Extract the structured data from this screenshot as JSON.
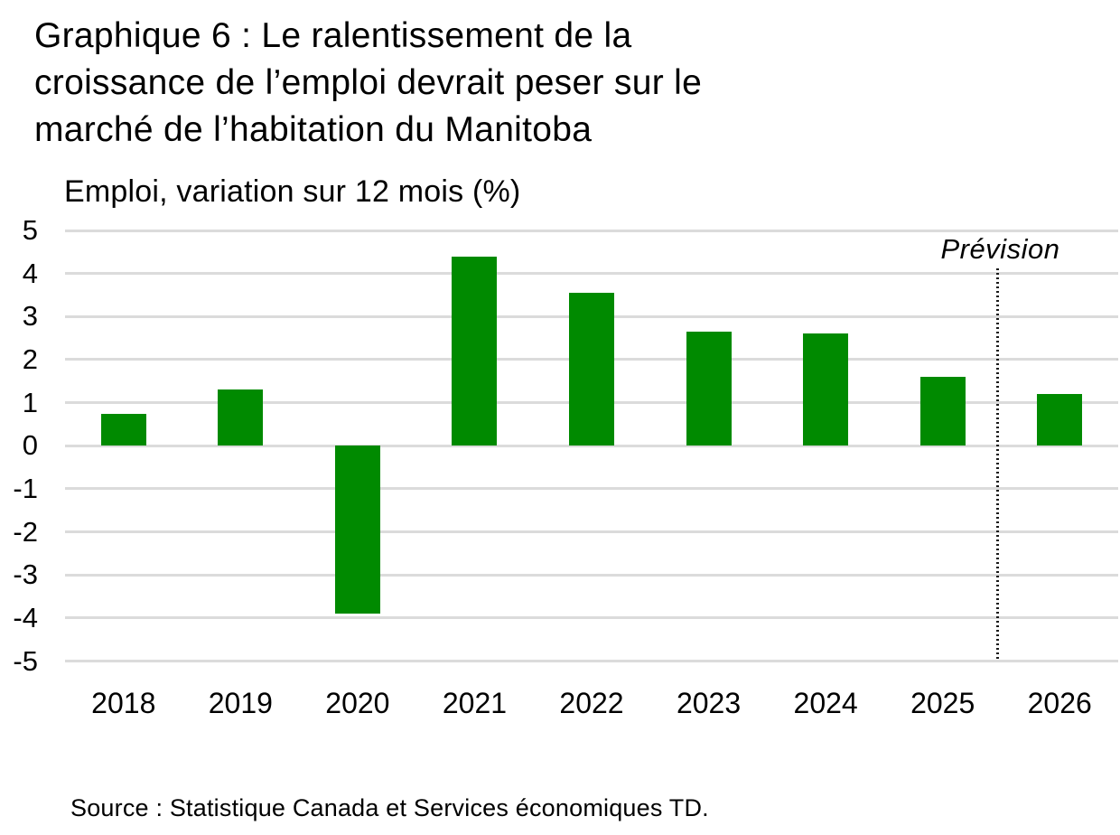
{
  "page": {
    "title_lines": [
      "Graphique 6 : Le ralentissement de la",
      "croissance de l’emploi devrait peser sur le",
      "marché de l’habitation du Manitoba"
    ],
    "source": "Source : Statistique Canada et Services économiques TD."
  },
  "chart_data": {
    "type": "bar",
    "title": "Graphique 6 : Le ralentissement de la croissance de l’emploi devrait peser sur le marché de l’habitation du Manitoba",
    "subtitle": "Emploi, variation sur 12 mois (%)",
    "xlabel": "",
    "ylabel": "Emploi, variation sur 12 mois (%)",
    "categories": [
      "2018",
      "2019",
      "2020",
      "2021",
      "2022",
      "2023",
      "2024",
      "2025",
      "2026"
    ],
    "values": [
      0.75,
      1.3,
      -3.9,
      4.4,
      3.55,
      2.65,
      2.6,
      1.6,
      1.2
    ],
    "ylim": [
      -5,
      5
    ],
    "ytick_step": 1,
    "grid": true,
    "legend": false,
    "bar_color": "#008A00",
    "gridline_color": "#DBDBDB",
    "forecast": {
      "label": "Prévision",
      "divider_between": [
        "2025",
        "2026"
      ],
      "divider_style": "dotted"
    }
  }
}
